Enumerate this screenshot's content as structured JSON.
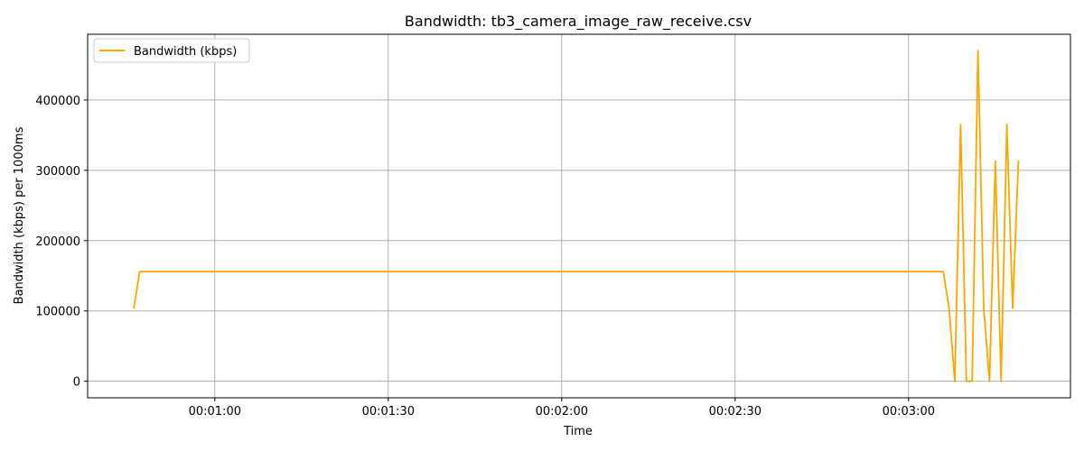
{
  "chart_data": {
    "type": "line",
    "title": "Bandwidth: tb3_camera_image_raw_receive.csv",
    "xlabel": "Time",
    "ylabel": "Bandwidth (kbps) per 1000ms",
    "x_ticks": [
      {
        "value": 60,
        "label": "00:01:00"
      },
      {
        "value": 90,
        "label": "00:01:30"
      },
      {
        "value": 120,
        "label": "00:02:00"
      },
      {
        "value": 150,
        "label": "00:02:30"
      },
      {
        "value": 180,
        "label": "00:03:00"
      }
    ],
    "y_ticks": [
      {
        "value": 0,
        "label": "0"
      },
      {
        "value": 100000,
        "label": "100000"
      },
      {
        "value": 200000,
        "label": "200000"
      },
      {
        "value": 300000,
        "label": "300000"
      },
      {
        "value": 400000,
        "label": "400000"
      }
    ],
    "xlim": [
      38,
      208
    ],
    "ylim": [
      -23500,
      493500
    ],
    "grid": true,
    "legend_position": "upper-left",
    "series": [
      {
        "name": "Bandwidth (kbps)",
        "color": "#ffa500",
        "x": [
          46,
          47,
          48,
          186,
          187,
          188,
          189,
          190,
          191,
          192,
          193,
          194,
          195,
          196,
          197,
          198,
          199
        ],
        "y": [
          104000,
          156000,
          156000,
          156000,
          104000,
          0,
          365000,
          0,
          0,
          470000,
          104000,
          0,
          313000,
          0,
          365000,
          104000,
          313000
        ]
      }
    ]
  }
}
